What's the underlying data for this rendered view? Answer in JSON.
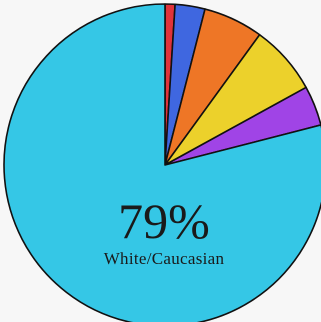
{
  "chart_data": {
    "type": "pie",
    "categories": [
      "White/Caucasian",
      "",
      "",
      "",
      "",
      ""
    ],
    "values": [
      79,
      1,
      3,
      6,
      7,
      4
    ],
    "colors": [
      "#35c7e6",
      "#e0333a",
      "#3f67e0",
      "#ee7626",
      "#ecd12b",
      "#a044e6"
    ],
    "start_angle": "top, slices clockwise after the large one",
    "labels": {
      "highlight_value": "79%",
      "highlight_name": "White/Caucasian"
    }
  }
}
